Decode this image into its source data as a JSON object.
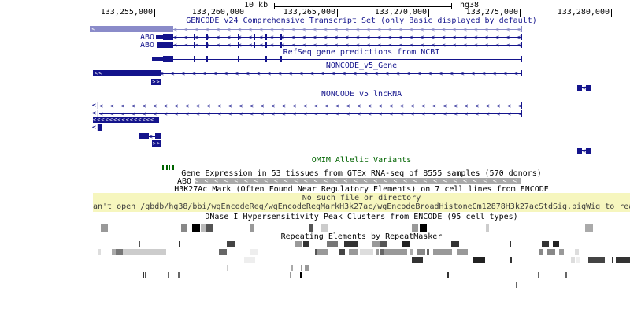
{
  "ruler": {
    "scale_label": "10 kb",
    "assembly": "hg38"
  },
  "coordinates": {
    "labels": [
      {
        "text": "133,255,000",
        "tick_x": 196
      },
      {
        "text": "133,260,000",
        "tick_x": 312
      },
      {
        "text": "133,265,000",
        "tick_x": 428
      },
      {
        "text": "133,270,000",
        "tick_x": 544
      },
      {
        "text": "133,275,000",
        "tick_x": 660
      },
      {
        "text": "133,280,000",
        "tick_x": 776
      }
    ]
  },
  "glyphs": {
    "left_arrow": "<",
    "right_arrow": ">",
    "left_arrow_pair": "<<",
    "right_arrow_pair": ">>",
    "start_glyph": "<|"
  },
  "colors": {
    "navy": "#14148c",
    "lavender": "#8a8bc9",
    "green": "#006400",
    "gray": "#a9a9a9",
    "yellow": "#f6f6be"
  },
  "tracks": {
    "gencode": {
      "title": "GENCODE v24 Comprehensive Transcript Set (only Basic displayed by default)",
      "gene_label_1": "ABO",
      "gene_label_2": "ABO",
      "abo_exons": [
        246,
        262,
        302,
        322,
        337,
        356
      ]
    },
    "refseq": {
      "title": "RefSeq gene predictions from NCBI",
      "exons": [
        246,
        262,
        302,
        337,
        356
      ]
    },
    "noncode_gene": {
      "title": "NONCODE_v5_Gene"
    },
    "noncode_lncrna": {
      "title": "NONCODE_v5_lncRNA"
    },
    "omim": {
      "title": "OMIM Allelic Variants",
      "ticks": [
        [
          206,
          2,
          "#006400"
        ],
        [
          210.5,
          2,
          "#006400"
        ],
        [
          213.5,
          2,
          "#006400"
        ],
        [
          219,
          2,
          "#006400"
        ]
      ]
    },
    "gtex": {
      "title": "Gene Expression in 53 tissues from GTEx RNA-seq of 8555 samples (570 donors)",
      "gene_label": "ABO"
    },
    "h3k27ac": {
      "title": "H3K27Ac Mark (Often Found Near Regulatory Elements) on 7 cell lines from ENCODE"
    },
    "error": {
      "line1": "No such file or directory",
      "line2": "an't open /gbdb/hg38/bbi/wgEncodeReg/wgEncodeRegMarkH3k27ac/wgEncodeBroadHistoneGm12878H3k27acStdSig.bigWig to rea"
    },
    "dnase": {
      "title": "DNase I Hypersensitivity Peak Clusters from ENCODE (95 cell types)",
      "boxes": [
        [
          128,
          9,
          "#999"
        ],
        [
          230,
          8,
          "#888"
        ],
        [
          244,
          10,
          "#000"
        ],
        [
          255,
          6,
          "#bbb"
        ],
        [
          261,
          10,
          "#555"
        ],
        [
          318,
          4,
          "#999"
        ],
        [
          393,
          4,
          "#555"
        ],
        [
          408,
          8,
          "#ccc"
        ],
        [
          523,
          8,
          "#999"
        ],
        [
          533,
          9,
          "#000"
        ],
        [
          617,
          4,
          "#ccc"
        ],
        [
          743,
          10,
          "#aaa"
        ]
      ]
    },
    "repeatmasker": {
      "title": "Repeating Elements by RepeatMasker",
      "rowA": [
        [
          176,
          1.5,
          "#555"
        ],
        [
          227,
          1.5,
          "#333"
        ],
        [
          288,
          10,
          "#444"
        ],
        [
          375,
          8,
          "#999"
        ],
        [
          385,
          8,
          "#333"
        ],
        [
          415,
          14,
          "#777"
        ],
        [
          437,
          18,
          "#333"
        ],
        [
          473,
          9,
          "#999"
        ],
        [
          483,
          9,
          "#555"
        ],
        [
          510,
          10,
          "#222"
        ],
        [
          573,
          10,
          "#333"
        ],
        [
          647,
          1.5,
          "#333"
        ],
        [
          688,
          9,
          "#333"
        ],
        [
          702,
          8,
          "#222"
        ]
      ],
      "rowB": [
        [
          125,
          3,
          "#ddd"
        ],
        [
          142,
          5,
          "#aaa"
        ],
        [
          147,
          9,
          "#777"
        ],
        [
          156,
          55,
          "#ccc"
        ],
        [
          278,
          10,
          "#666"
        ],
        [
          318,
          10,
          "#eee"
        ],
        [
          400,
          3,
          "#555"
        ],
        [
          403,
          14,
          "#999"
        ],
        [
          430,
          8,
          "#444"
        ],
        [
          443,
          12,
          "#999"
        ],
        [
          457,
          17,
          "#ddd"
        ],
        [
          478,
          3,
          "#999"
        ],
        [
          483,
          4,
          "#666"
        ],
        [
          488,
          29,
          "#999"
        ],
        [
          520,
          5,
          "#aaa"
        ],
        [
          530,
          10,
          "#888"
        ],
        [
          542,
          3,
          "#666"
        ],
        [
          550,
          24,
          "#999"
        ],
        [
          580,
          14,
          "#999"
        ],
        [
          685,
          5,
          "#888"
        ],
        [
          695,
          10,
          "#888"
        ],
        [
          710,
          6,
          "#999"
        ],
        [
          730,
          5,
          "#ddd"
        ]
      ],
      "rowC": [
        [
          310,
          14,
          "#eee"
        ],
        [
          523,
          14,
          "#333"
        ],
        [
          600,
          16,
          "#222"
        ],
        [
          648,
          1.5,
          "#333"
        ],
        [
          725,
          5,
          "#ddd"
        ],
        [
          731,
          6,
          "#eee"
        ],
        [
          747,
          21,
          "#444"
        ],
        [
          777,
          2,
          "#333"
        ],
        [
          782,
          18,
          "#333"
        ]
      ],
      "rowD": [
        [
          288,
          2,
          "#ccc"
        ],
        [
          370,
          2,
          "#aaa"
        ],
        [
          382,
          2,
          "#999"
        ],
        [
          387,
          5,
          "#999"
        ]
      ],
      "rowE": [
        [
          181,
          2,
          "#333"
        ],
        [
          184,
          2,
          "#555"
        ],
        [
          213,
          1.5,
          "#666"
        ],
        [
          226,
          1.5,
          "#666"
        ],
        [
          368,
          1.5,
          "#999"
        ],
        [
          381,
          2,
          "#000"
        ],
        [
          568,
          1.5,
          "#333"
        ],
        [
          683,
          1.5,
          "#666"
        ],
        [
          718,
          1.5,
          "#666"
        ]
      ],
      "rowF": [
        [
          655,
          1.5,
          "#666"
        ]
      ]
    }
  }
}
